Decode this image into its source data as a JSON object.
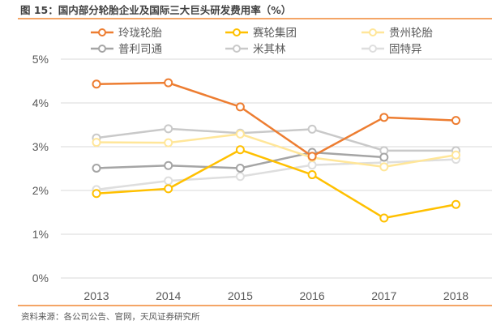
{
  "header": {
    "title": "图 15：国内部分轮胎企业及国际三大巨头研发费用率（%）"
  },
  "footer": {
    "source": "资料来源：各公司公告、官网，天风证券研究所"
  },
  "chart_data": {
    "type": "line",
    "title": "图 15：国内部分轮胎企业及国际三大巨头研发费用率（%）",
    "xlabel": "",
    "ylabel": "",
    "x": [
      "2013",
      "2014",
      "2015",
      "2016",
      "2017",
      "2018"
    ],
    "ylim": [
      0,
      5
    ],
    "yticks": [
      0,
      1,
      2,
      3,
      4,
      5
    ],
    "ytick_labels": [
      "0%",
      "1%",
      "2%",
      "3%",
      "4%",
      "5%"
    ],
    "grid": true,
    "legend_position": "top",
    "series": [
      {
        "name": "玲珑轮胎",
        "color": "#ED7D31",
        "values": [
          4.43,
          4.46,
          3.91,
          2.78,
          3.67,
          3.6
        ]
      },
      {
        "name": "赛轮集团",
        "color": "#FFC000",
        "values": [
          1.93,
          2.04,
          2.93,
          2.36,
          1.37,
          1.68
        ]
      },
      {
        "name": "贵州轮胎",
        "color": "#FFE699",
        "values": [
          3.1,
          3.09,
          3.29,
          2.75,
          2.54,
          2.81
        ]
      },
      {
        "name": "普利司通",
        "color": "#A5A5A5",
        "values": [
          2.51,
          2.57,
          2.51,
          2.87,
          2.76,
          null
        ]
      },
      {
        "name": "米其林",
        "color": "#C9C9C9",
        "values": [
          3.2,
          3.41,
          3.31,
          3.4,
          2.91,
          2.91
        ]
      },
      {
        "name": "固特异",
        "color": "#DEDEDE",
        "values": [
          2.02,
          2.22,
          2.32,
          2.58,
          2.64,
          2.71
        ]
      }
    ]
  }
}
